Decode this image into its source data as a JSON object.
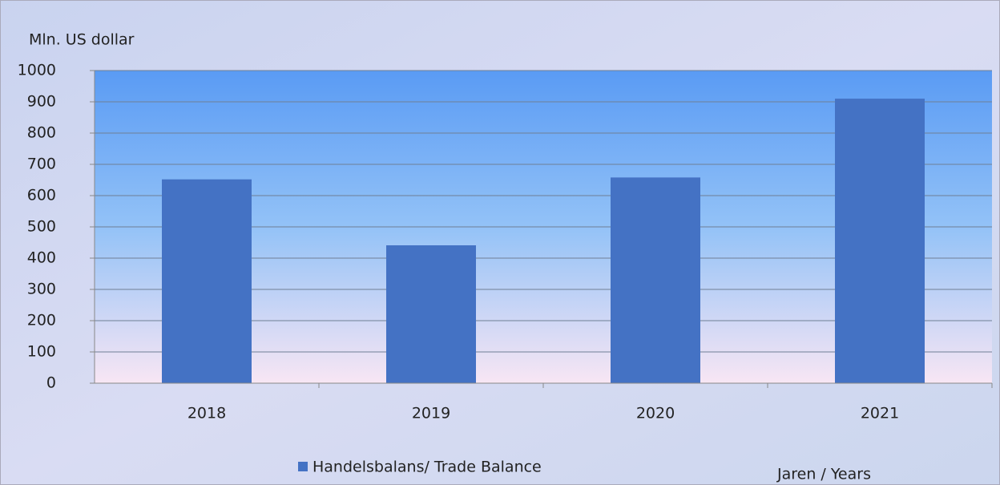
{
  "chart_data": {
    "type": "bar",
    "y_axis_label": "Mln. US dollar",
    "x_axis_label": "Jaren / Years",
    "categories": [
      "2018",
      "2019",
      "2020",
      "2021"
    ],
    "series": [
      {
        "name": "Handelsbalans/ Trade Balance",
        "color": "#4472c4",
        "values": [
          652,
          441,
          658,
          910
        ]
      }
    ],
    "ylim": [
      0,
      1000
    ],
    "yticks": [
      0,
      100,
      200,
      300,
      400,
      500,
      600,
      700,
      800,
      900,
      1000
    ],
    "grid": true,
    "legend": "bottom"
  }
}
